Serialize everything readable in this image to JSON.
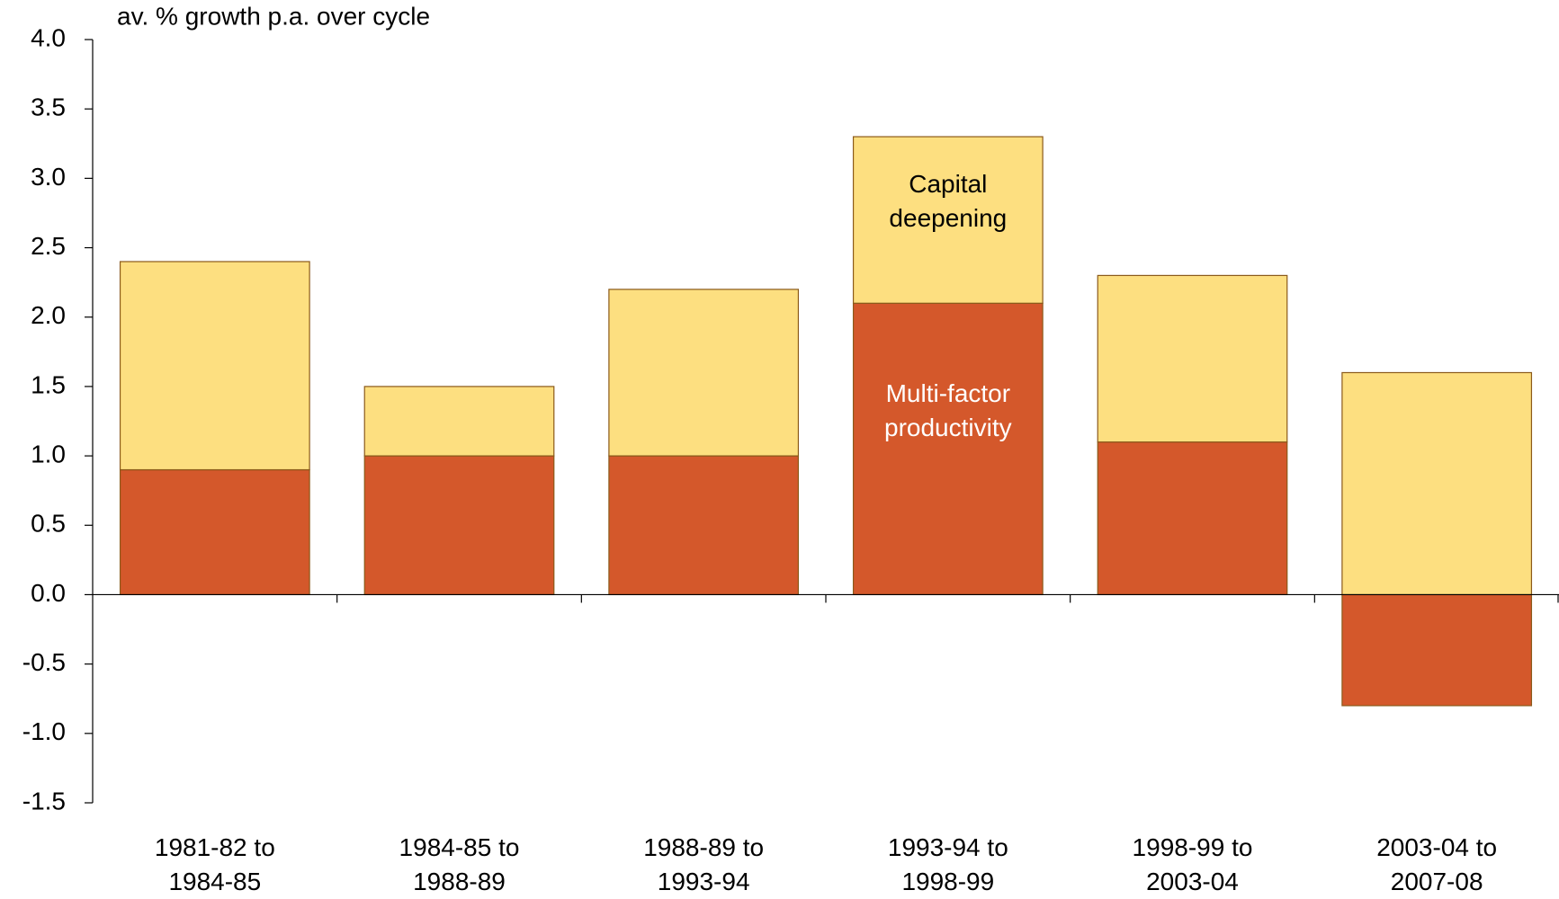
{
  "chart_data": {
    "type": "stacked_bar",
    "y_axis_label": "av. % growth p.a. over cycle",
    "categories": [
      "1981-82 to 1984-85",
      "1984-85 to 1988-89",
      "1988-89 to 1993-94",
      "1993-94 to 1998-99",
      "1998-99 to 2003-04",
      "2003-04 to 2007-08"
    ],
    "series": [
      {
        "name": "Multi-factor productivity",
        "color": "#d4582b",
        "values": [
          0.9,
          1.0,
          1.0,
          2.1,
          1.1,
          -0.8
        ]
      },
      {
        "name": "Capital deepening",
        "color": "#fddf80",
        "values": [
          1.5,
          0.5,
          1.2,
          1.2,
          1.2,
          1.6
        ]
      }
    ],
    "ylim": [
      -1.5,
      4.0
    ],
    "yticks": [
      {
        "value": -1.5,
        "label": "-1.5"
      },
      {
        "value": -1.0,
        "label": "-1.0"
      },
      -0.5,
      {
        "value": 0,
        "label": "0.0"
      },
      0.5,
      {
        "value": 1.0,
        "label": "1.0"
      },
      1.5,
      {
        "value": 2.0,
        "label": "2.0"
      },
      2.5,
      {
        "value": 3.0,
        "label": "3.0"
      },
      3.5,
      {
        "value": 4.0,
        "label": "4.0"
      }
    ],
    "series_label_category": 3
  }
}
